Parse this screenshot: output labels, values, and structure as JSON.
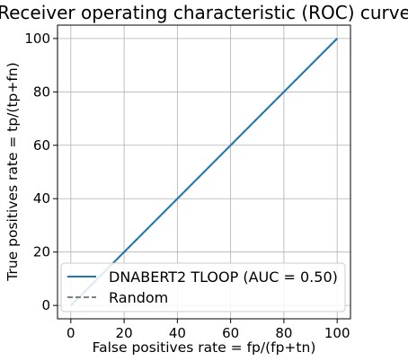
{
  "chart_data": {
    "type": "line",
    "title": "Receiver operating characteristic (ROC) curve",
    "xlabel": "False positives rate = fp/(fp+tn)",
    "ylabel": "True positives rate = tp/(tp+fn)",
    "xlim": [
      -5,
      105
    ],
    "ylim": [
      -5,
      105
    ],
    "xticks": [
      0,
      20,
      40,
      60,
      80,
      100
    ],
    "yticks": [
      0,
      20,
      40,
      60,
      80,
      100
    ],
    "grid": true,
    "legend_position": "lower-right",
    "series": [
      {
        "name": "DNABERT2 TLOOP (AUC = 0.50)",
        "style": "solid",
        "color": "#1f77b4",
        "x": [
          0,
          100
        ],
        "y": [
          0,
          100
        ]
      },
      {
        "name": "Random",
        "style": "dashed",
        "color": "#808080",
        "x": [
          0,
          100
        ],
        "y": [
          0,
          100
        ]
      }
    ]
  }
}
